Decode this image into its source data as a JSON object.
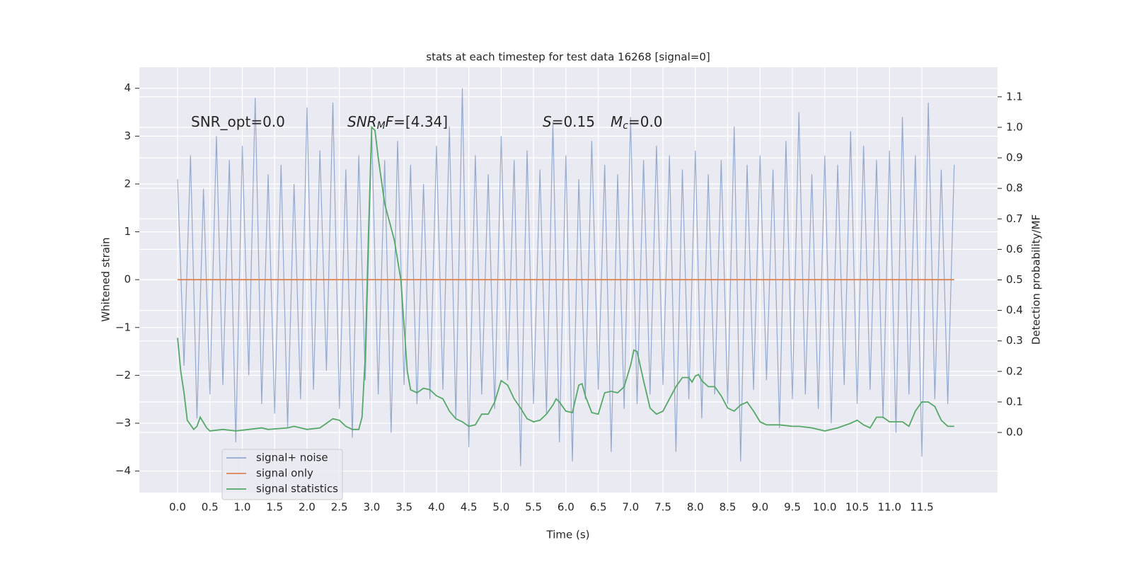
{
  "chart_data": {
    "type": "line",
    "title": "stats at each timestep for test data 16268 [signal=0]",
    "xlabel": "Time (s)",
    "ylabel": "Whitened strain",
    "y2label": "Detection probability/MF",
    "annotations": [
      [
        "SNR_opt=0.0"
      ],
      [
        "SNR",
        "M",
        "F",
        "=[4.34]"
      ],
      [
        "S",
        "=0.15",
        "M",
        "c",
        "=0.0"
      ]
    ],
    "xlim": [
      -0.59,
      12.67
    ],
    "ylim": [
      -4.45,
      4.44
    ],
    "y2lim": [
      -0.197,
      1.197
    ],
    "xticks": [
      {
        "value": 0,
        "label": "0.0"
      },
      0.5,
      {
        "value": 1,
        "label": "1.0"
      },
      1.5,
      {
        "value": 2,
        "label": "2.0"
      },
      2.5,
      {
        "value": 3,
        "label": "3.0"
      },
      3.5,
      {
        "value": 4,
        "label": "4.0"
      },
      4.5,
      {
        "value": 5,
        "label": "5.0"
      },
      5.5,
      {
        "value": 6,
        "label": "6.0"
      },
      6.5,
      {
        "value": 7,
        "label": "7.0"
      },
      7.5,
      {
        "value": 8,
        "label": "8.0"
      },
      8.5,
      {
        "value": 9,
        "label": "9.0"
      },
      9.5,
      {
        "value": 10,
        "label": "10.0"
      },
      10.5,
      {
        "value": 11,
        "label": "11.0"
      },
      11.5
    ],
    "yticks": [
      {
        "value": -4,
        "label": "−4"
      },
      {
        "value": -3,
        "label": "−3"
      },
      {
        "value": -2,
        "label": "−2"
      },
      {
        "value": -1,
        "label": "−1"
      },
      0,
      1,
      2,
      3,
      4
    ],
    "y2ticks": [
      {
        "value": 0,
        "label": "0.0"
      },
      0.1,
      0.2,
      0.3,
      0.4,
      0.5,
      0.6,
      0.7,
      0.8,
      0.9,
      {
        "value": 1,
        "label": "1.0"
      },
      1.1
    ],
    "grid": true,
    "legend": "lower left",
    "series": [
      {
        "name": "signal+ noise",
        "color": "#4c72b0",
        "x": [
          0,
          0.1,
          0.2,
          0.3,
          0.4,
          0.5,
          0.6,
          0.7,
          0.8,
          0.9,
          1,
          1.1,
          1.2,
          1.3,
          1.4,
          1.5,
          1.6,
          1.7,
          1.8,
          1.9,
          2,
          2.1,
          2.2,
          2.3,
          2.4,
          2.5,
          2.6,
          2.7,
          2.8,
          2.9,
          3,
          3.1,
          3.2,
          3.3,
          3.4,
          3.5,
          3.6,
          3.7,
          3.8,
          3.9,
          4,
          4.1,
          4.2,
          4.3,
          4.4,
          4.5,
          4.6,
          4.7,
          4.8,
          4.9,
          5,
          5.1,
          5.2,
          5.3,
          5.4,
          5.5,
          5.6,
          5.7,
          5.8,
          5.9,
          6,
          6.1,
          6.2,
          6.3,
          6.4,
          6.5,
          6.6,
          6.7,
          6.8,
          6.9,
          7,
          7.1,
          7.2,
          7.3,
          7.4,
          7.5,
          7.6,
          7.7,
          7.8,
          7.9,
          8,
          8.1,
          8.2,
          8.3,
          8.4,
          8.5,
          8.6,
          8.7,
          8.8,
          8.9,
          9,
          9.1,
          9.2,
          9.3,
          9.4,
          9.5,
          9.6,
          9.7,
          9.8,
          9.9,
          10,
          10.1,
          10.2,
          10.3,
          10.4,
          10.5,
          10.6,
          10.7,
          10.8,
          10.9,
          11,
          11.1,
          11.2,
          11.3,
          11.4,
          11.5,
          11.6,
          11.7,
          11.8,
          11.9,
          12
        ],
        "values": [
          2.1,
          -1.8,
          2.6,
          -2.9,
          1.9,
          -2.4,
          3.0,
          -2.2,
          2.5,
          -3.4,
          2.8,
          -2.0,
          3.8,
          -2.6,
          2.2,
          -2.8,
          2.4,
          -3.1,
          2.0,
          -2.5,
          3.6,
          -2.3,
          2.7,
          -1.9,
          3.7,
          -2.7,
          2.3,
          -3.3,
          2.6,
          -2.1,
          3.1,
          -2.4,
          2.5,
          -3.2,
          2.9,
          -2.2,
          2.4,
          -2.6,
          2.0,
          -2.5,
          2.8,
          -2.3,
          3.2,
          -2.9,
          4.0,
          -3.5,
          2.6,
          -2.4,
          2.2,
          -2.7,
          3.0,
          -2.1,
          2.5,
          -3.9,
          2.7,
          -2.6,
          2.3,
          -2.8,
          3.3,
          -3.4,
          2.6,
          -3.8,
          2.1,
          -2.5,
          2.9,
          -2.3,
          2.4,
          -3.6,
          2.2,
          -2.7,
          3.4,
          -2.6,
          2.5,
          -2.4,
          2.8,
          -2.2,
          2.6,
          -3.6,
          2.3,
          -2.5,
          2.7,
          -2.9,
          2.2,
          -2.4,
          2.5,
          -2.6,
          3.2,
          -3.8,
          2.4,
          -2.3,
          2.6,
          -2.1,
          2.3,
          -3.1,
          2.9,
          -2.5,
          3.5,
          -2.4,
          2.2,
          -2.7,
          2.6,
          -3.0,
          2.4,
          -2.2,
          3.1,
          -2.6,
          2.8,
          -2.3,
          2.5,
          -2.9,
          2.7,
          -3.2,
          3.4,
          -2.4,
          2.6,
          -3.7,
          3.7,
          -2.5,
          2.3,
          -2.6,
          2.4
        ]
      },
      {
        "name": "signal only",
        "color": "#dd8452",
        "x": [
          0,
          12
        ],
        "values": [
          0,
          0
        ]
      },
      {
        "name": "signal statistics",
        "color": "#55a868",
        "axis": "y2",
        "x": [
          0,
          0.05,
          0.1,
          0.15,
          0.25,
          0.3,
          0.35,
          0.45,
          0.5,
          0.7,
          0.9,
          1.1,
          1.3,
          1.4,
          1.7,
          1.8,
          2.0,
          2.2,
          2.3,
          2.4,
          2.5,
          2.6,
          2.7,
          2.8,
          2.85,
          2.9,
          2.95,
          3.0,
          3.05,
          3.1,
          3.2,
          3.35,
          3.45,
          3.55,
          3.6,
          3.7,
          3.8,
          3.9,
          4.0,
          4.1,
          4.2,
          4.3,
          4.4,
          4.5,
          4.6,
          4.7,
          4.8,
          4.9,
          5.0,
          5.1,
          5.2,
          5.3,
          5.4,
          5.5,
          5.6,
          5.7,
          5.8,
          5.85,
          5.9,
          6.0,
          6.1,
          6.2,
          6.25,
          6.3,
          6.4,
          6.5,
          6.6,
          6.7,
          6.8,
          6.9,
          7.0,
          7.05,
          7.1,
          7.2,
          7.3,
          7.4,
          7.5,
          7.6,
          7.7,
          7.8,
          7.9,
          7.95,
          8.0,
          8.05,
          8.1,
          8.2,
          8.3,
          8.4,
          8.5,
          8.6,
          8.7,
          8.8,
          8.9,
          9.0,
          9.1,
          9.3,
          9.5,
          9.6,
          9.8,
          10.0,
          10.2,
          10.4,
          10.5,
          10.6,
          10.7,
          10.8,
          10.9,
          11.0,
          11.2,
          11.3,
          11.4,
          11.5,
          11.6,
          11.7,
          11.8,
          11.9,
          12.0
        ],
        "values": [
          0.31,
          0.2,
          0.13,
          0.04,
          0.01,
          0.02,
          0.05,
          0.015,
          0.005,
          0.01,
          0.005,
          0.01,
          0.015,
          0.01,
          0.015,
          0.02,
          0.01,
          0.015,
          0.03,
          0.045,
          0.04,
          0.02,
          0.01,
          0.01,
          0.05,
          0.25,
          0.65,
          1.0,
          0.99,
          0.9,
          0.75,
          0.63,
          0.5,
          0.2,
          0.14,
          0.13,
          0.145,
          0.14,
          0.12,
          0.11,
          0.07,
          0.045,
          0.035,
          0.02,
          0.025,
          0.06,
          0.06,
          0.1,
          0.17,
          0.155,
          0.11,
          0.08,
          0.045,
          0.035,
          0.04,
          0.06,
          0.09,
          0.11,
          0.1,
          0.07,
          0.065,
          0.155,
          0.16,
          0.12,
          0.065,
          0.06,
          0.13,
          0.135,
          0.13,
          0.15,
          0.22,
          0.27,
          0.265,
          0.17,
          0.08,
          0.06,
          0.07,
          0.11,
          0.15,
          0.18,
          0.18,
          0.165,
          0.185,
          0.19,
          0.17,
          0.15,
          0.15,
          0.12,
          0.08,
          0.07,
          0.09,
          0.1,
          0.07,
          0.035,
          0.025,
          0.025,
          0.02,
          0.02,
          0.015,
          0.005,
          0.015,
          0.03,
          0.04,
          0.025,
          0.015,
          0.05,
          0.05,
          0.035,
          0.035,
          0.02,
          0.07,
          0.1,
          0.1,
          0.085,
          0.04,
          0.02,
          0.02
        ]
      }
    ]
  }
}
